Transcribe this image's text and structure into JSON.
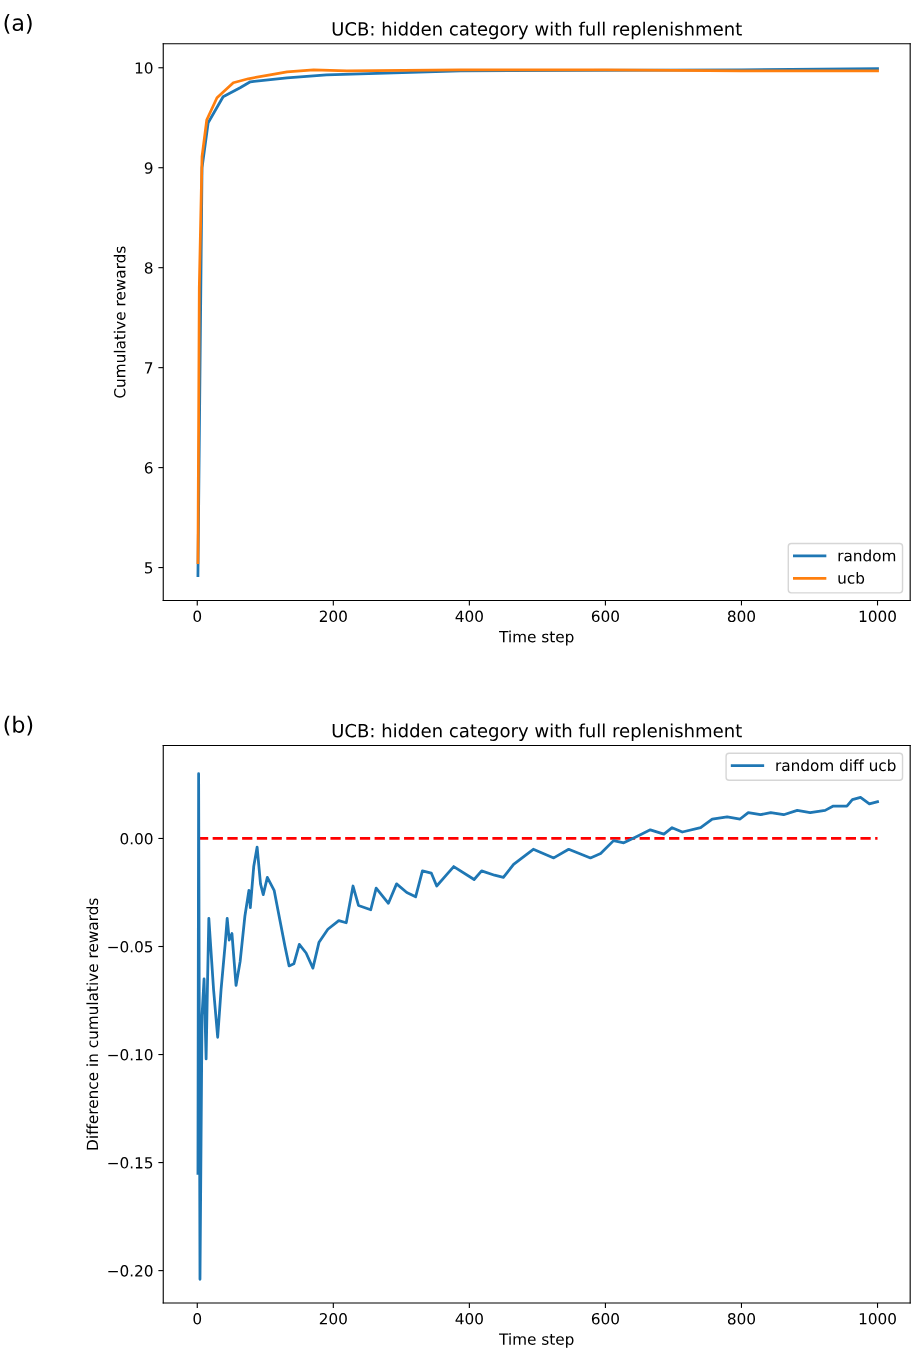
{
  "chart_data": [
    {
      "type": "line",
      "title": "UCB: hidden category with full replenishment",
      "xlabel": "Time step",
      "ylabel": "Cumulative rewards",
      "annotations": [
        "(a)"
      ],
      "xlim": [
        -50,
        1048
      ],
      "xticks": [
        0,
        200,
        400,
        600,
        800,
        1000
      ],
      "ylim": [
        4.67,
        10.24
      ],
      "yticks": [
        5,
        6,
        7,
        8,
        9,
        10
      ],
      "legend": "lower right",
      "grid": false,
      "series": [
        {
          "name": "random",
          "color": "#1f77b4",
          "x": [
            1,
            7,
            16,
            38,
            63,
            78,
            132,
            190,
            289,
            387,
            800,
            1000
          ],
          "values": [
            4.92,
            9.0,
            9.45,
            9.71,
            9.8,
            9.86,
            9.9,
            9.93,
            9.95,
            9.97,
            9.98,
            9.99
          ]
        },
        {
          "name": "ucb",
          "color": "#ff7f0e",
          "x": [
            1,
            3,
            7,
            14,
            29,
            53,
            75,
            107,
            132,
            171,
            220,
            387,
            600,
            800,
            1000
          ],
          "values": [
            5.05,
            7.8,
            9.11,
            9.48,
            9.7,
            9.85,
            9.89,
            9.93,
            9.96,
            9.98,
            9.97,
            9.98,
            9.98,
            9.97,
            9.97
          ]
        }
      ]
    },
    {
      "type": "line",
      "title": "UCB: hidden category with full replenishment",
      "xlabel": "Time step",
      "ylabel": "Difference in cumulative rewards",
      "annotations": [
        "(b)"
      ],
      "xlim": [
        -50,
        1048
      ],
      "xticks": [
        0,
        200,
        400,
        600,
        800,
        1000
      ],
      "ylim": [
        -0.215,
        0.043
      ],
      "yticks": [
        {
          "value": -0.2,
          "label": "−0.20"
        },
        {
          "value": -0.15,
          "label": "−0.15"
        },
        {
          "value": -0.1,
          "label": "−0.10"
        },
        {
          "value": -0.05,
          "label": "−0.05"
        },
        {
          "value": 0,
          "label": "0.00"
        }
      ],
      "legend": "upper right",
      "grid": false,
      "ref_lines": [
        {
          "axis": "y",
          "value": 0,
          "color": "#ff0000",
          "line_style": "dashed"
        }
      ],
      "series": [
        {
          "name": "random diff ucb",
          "color": "#1f77b4",
          "x": [
            1,
            2,
            4,
            7,
            10,
            13,
            15,
            17,
            24,
            30,
            35,
            41,
            44,
            47,
            51,
            57,
            63,
            70,
            76,
            78,
            83,
            88,
            93,
            97,
            103,
            113,
            121,
            129,
            135,
            142,
            150,
            160,
            170,
            179,
            192,
            208,
            219,
            229,
            237,
            255,
            263,
            281,
            293,
            308,
            321,
            331,
            344,
            352,
            366,
            377,
            407,
            418,
            437,
            450,
            465,
            494,
            524,
            546,
            578,
            593,
            612,
            627,
            647,
            666,
            686,
            698,
            713,
            740,
            757,
            779,
            798,
            810,
            828,
            843,
            862,
            882,
            901,
            923,
            935,
            955,
            963,
            975,
            988,
            1000
          ],
          "values": [
            -0.155,
            0.03,
            -0.204,
            -0.082,
            -0.065,
            -0.102,
            -0.068,
            -0.037,
            -0.07,
            -0.092,
            -0.07,
            -0.049,
            -0.037,
            -0.047,
            -0.044,
            -0.068,
            -0.057,
            -0.036,
            -0.024,
            -0.032,
            -0.013,
            -0.004,
            -0.021,
            -0.026,
            -0.018,
            -0.024,
            -0.037,
            -0.05,
            -0.059,
            -0.058,
            -0.049,
            -0.053,
            -0.06,
            -0.048,
            -0.042,
            -0.038,
            -0.039,
            -0.022,
            -0.031,
            -0.033,
            -0.023,
            -0.03,
            -0.021,
            -0.025,
            -0.027,
            -0.015,
            -0.016,
            -0.022,
            -0.017,
            -0.013,
            -0.019,
            -0.015,
            -0.017,
            -0.018,
            -0.012,
            -0.005,
            -0.009,
            -0.005,
            -0.009,
            -0.007,
            -0.001,
            -0.002,
            0.001,
            0.004,
            0.002,
            0.005,
            0.003,
            0.005,
            0.009,
            0.01,
            0.009,
            0.012,
            0.011,
            0.012,
            0.011,
            0.013,
            0.012,
            0.013,
            0.015,
            0.015,
            0.018,
            0.019,
            0.016,
            0.017
          ]
        }
      ]
    }
  ]
}
